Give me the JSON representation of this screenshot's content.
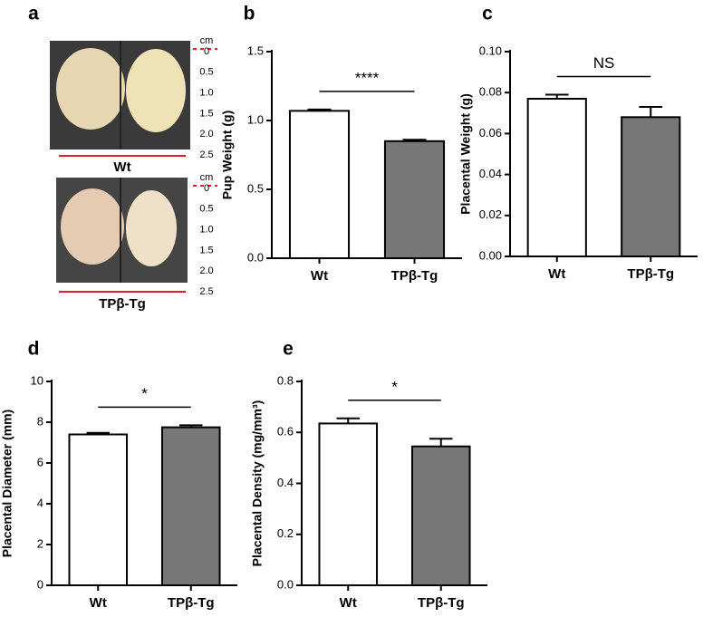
{
  "photo_panel": {
    "panel": "a",
    "groups": [
      {
        "unit": "cm",
        "scale": [
          "0",
          "0.5",
          "1.0",
          "1.5",
          "2.0",
          "2.5"
        ],
        "label": "Wt"
      },
      {
        "unit": "cm",
        "scale": [
          "0",
          "0.5",
          "1.0",
          "1.5",
          "2.0",
          "2.5"
        ],
        "label": "TPβ-Tg"
      }
    ]
  },
  "chart_data": [
    {
      "type": "bar",
      "panel": "b",
      "y_label": "Pup Weight (g)",
      "categories": [
        "Wt",
        "TPβ-Tg"
      ],
      "values": [
        1.07,
        0.85
      ],
      "errors": [
        0.01,
        0.01
      ],
      "colors": [
        "#ffffff",
        "#777777"
      ],
      "ylim": [
        0,
        1.5
      ],
      "yticks": [
        {
          "value": 0,
          "label": "0.0"
        },
        0.5,
        {
          "value": 1,
          "label": "1.0"
        },
        1.5
      ],
      "annotation": "****"
    },
    {
      "type": "bar",
      "panel": "c",
      "y_label": "Placental Weight (g)",
      "categories": [
        "Wt",
        "TPβ-Tg"
      ],
      "values": [
        0.077,
        0.068
      ],
      "errors": [
        0.002,
        0.005
      ],
      "colors": [
        "#ffffff",
        "#777777"
      ],
      "ylim": [
        0,
        0.1
      ],
      "yticks": [
        {
          "value": 0,
          "label": "0.00"
        },
        {
          "value": 0.02,
          "label": "0.02"
        },
        {
          "value": 0.04,
          "label": "0.04"
        },
        {
          "value": 0.06,
          "label": "0.06"
        },
        {
          "value": 0.08,
          "label": "0.08"
        },
        {
          "value": 0.1,
          "label": "0.10"
        }
      ],
      "annotation": "NS"
    },
    {
      "type": "bar",
      "panel": "d",
      "y_label": "Placental Diameter (mm)",
      "categories": [
        "Wt",
        "TPβ-Tg"
      ],
      "values": [
        7.4,
        7.75
      ],
      "errors": [
        0.08,
        0.1
      ],
      "colors": [
        "#ffffff",
        "#777777"
      ],
      "ylim": [
        0,
        10
      ],
      "yticks": [
        0,
        2,
        4,
        6,
        8,
        10
      ],
      "annotation": "*"
    },
    {
      "type": "bar",
      "panel": "e",
      "y_label": "Placental Density (mg/mm³)",
      "categories": [
        "Wt",
        "TPβ-Tg"
      ],
      "values": [
        0.635,
        0.545
      ],
      "errors": [
        0.02,
        0.03
      ],
      "colors": [
        "#ffffff",
        "#777777"
      ],
      "ylim": [
        0,
        0.8
      ],
      "yticks": [
        {
          "value": 0,
          "label": "0.0"
        },
        0.2,
        0.4,
        0.6,
        0.8
      ],
      "annotation": "*"
    }
  ]
}
